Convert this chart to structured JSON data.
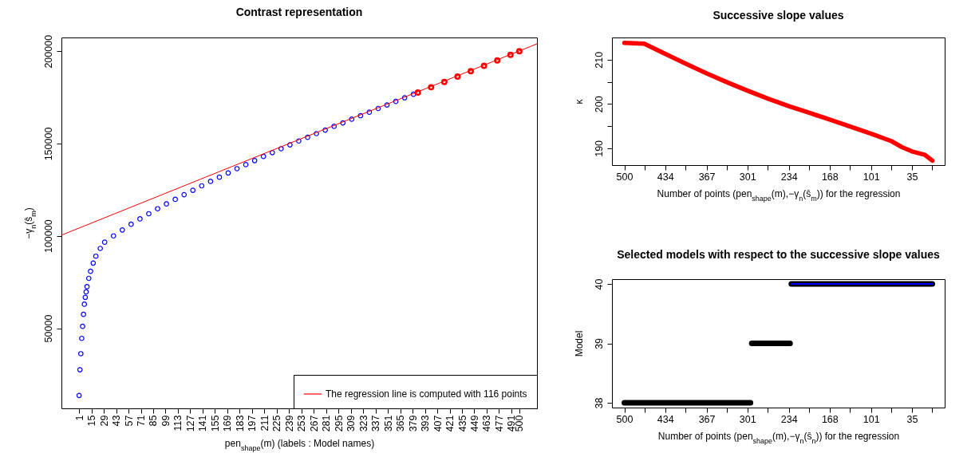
{
  "chart_data": [
    {
      "type": "scatter",
      "title": "Contrast representation",
      "xlabel": "pen$_{shape}$(m) (labels : Model names)",
      "ylabel": "−γ$_{n}$(ŝ$_{m}$)",
      "xlim": [
        -19,
        520
      ],
      "ylim": [
        6600,
        207440
      ],
      "xticks": [
        1,
        15,
        29,
        43,
        57,
        71,
        85,
        99,
        113,
        127,
        141,
        155,
        169,
        183,
        197,
        211,
        225,
        239,
        253,
        267,
        281,
        295,
        309,
        323,
        337,
        351,
        365,
        379,
        393,
        407,
        421,
        435,
        449,
        463,
        477,
        491,
        500
      ],
      "yticks": [
        50000,
        100000,
        150000,
        200000
      ],
      "legend": "bottom right",
      "series": [
        {
          "marker": "circle",
          "color": "#0000ff",
          "x": [
            1,
            2,
            3,
            4,
            5,
            6,
            7,
            8,
            9,
            10,
            12,
            14,
            17,
            20,
            25,
            30,
            40,
            50,
            60,
            70,
            80,
            90,
            100,
            110,
            120,
            130,
            140,
            150,
            160,
            170,
            180,
            190,
            200,
            210,
            220,
            230,
            240,
            250,
            260,
            270,
            280,
            290,
            300,
            310,
            320,
            330,
            340,
            350,
            360,
            370,
            380
          ],
          "values": [
            13600,
            27500,
            36200,
            44500,
            51000,
            57500,
            63000,
            66700,
            69700,
            72500,
            77000,
            80800,
            85300,
            89000,
            93200,
            96600,
            100000,
            103200,
            106300,
            109200,
            112000,
            114700,
            117300,
            119800,
            122300,
            124700,
            127100,
            129500,
            131800,
            134100,
            136400,
            138600,
            140800,
            143000,
            145100,
            147200,
            149300,
            151400,
            153400,
            155400,
            157300,
            159300,
            161200,
            163200,
            165100,
            167000,
            169000,
            170900,
            172800,
            174800,
            176700
          ]
        },
        {
          "marker": "circle",
          "color": "#ff0000",
          "x": [
            385,
            400,
            415,
            430,
            445,
            460,
            475,
            490,
            500
          ],
          "values": [
            177600,
            180500,
            183400,
            186300,
            189200,
            192100,
            195000,
            198000,
            200000
          ]
        },
        {
          "type": "line",
          "name": "The regression line is computed with 116 points",
          "color": "#ff0000",
          "x": [
            -19,
            520
          ],
          "values": [
            100400,
            204000
          ]
        }
      ]
    },
    {
      "type": "line",
      "title": "Successive slope values",
      "xlabel": "Number of points (pen$_{shape}$(m),−γ$_{n}$(ŝ$_{m}$)) for the regression",
      "ylabel": "κ",
      "xlim": [
        520,
        -18
      ],
      "ylim": [
        186.2,
        215
      ],
      "xticks": [
        500,
        {
          "value": 467,
          "label": null
        },
        434,
        {
          "value": 401,
          "label": null
        },
        367,
        {
          "value": 334,
          "label": null
        },
        301,
        {
          "value": 268,
          "label": null
        },
        234,
        {
          "value": 201,
          "label": null
        },
        168,
        {
          "value": 135,
          "label": null
        },
        101,
        {
          "value": 68,
          "label": null
        },
        35,
        {
          "value": 2,
          "label": null
        }
      ],
      "yticks": [
        190,
        {
          "value": 195,
          "label": null
        },
        200,
        {
          "value": 205,
          "label": null
        },
        210
      ],
      "series": [
        {
          "color": "#ff0000",
          "x": [
            500,
            468,
            434,
            401,
            367,
            334,
            301,
            268,
            234,
            201,
            168,
            135,
            101,
            68,
            52,
            35,
            14,
            2
          ],
          "values": [
            213.8,
            213.6,
            211.3,
            209.1,
            206.9,
            204.9,
            203,
            201.2,
            199.5,
            198,
            196.5,
            194.9,
            193.3,
            191.6,
            190.3,
            189.3,
            188.5,
            187.2
          ]
        }
      ]
    },
    {
      "type": "line",
      "title": "Selected models with respect to the successive slope values",
      "xlabel": "Number of points (pen$_{shape}$(m),−γ$_{n}$(ŝ$_{n}$)) for the regression",
      "ylabel": "Model",
      "xlim": [
        520,
        -18
      ],
      "ylim": [
        37.92,
        40.08
      ],
      "xticks": [
        500,
        {
          "value": 467,
          "label": null
        },
        434,
        {
          "value": 401,
          "label": null
        },
        367,
        {
          "value": 334,
          "label": null
        },
        301,
        {
          "value": 268,
          "label": null
        },
        234,
        {
          "value": 201,
          "label": null
        },
        168,
        {
          "value": 135,
          "label": null
        },
        101,
        {
          "value": 68,
          "label": null
        },
        35,
        {
          "value": 2,
          "label": null
        }
      ],
      "yticks": [
        38,
        39,
        40
      ],
      "series": [
        {
          "color": "#000000",
          "x": [
            500,
            296,
            295,
            294,
            232,
            231,
            230,
            2
          ],
          "values": [
            38,
            38,
            null,
            39,
            39,
            null,
            40,
            40
          ]
        },
        {
          "color": "#0000ff",
          "x": [
            230,
            2
          ],
          "values": [
            40,
            40
          ]
        }
      ]
    }
  ]
}
